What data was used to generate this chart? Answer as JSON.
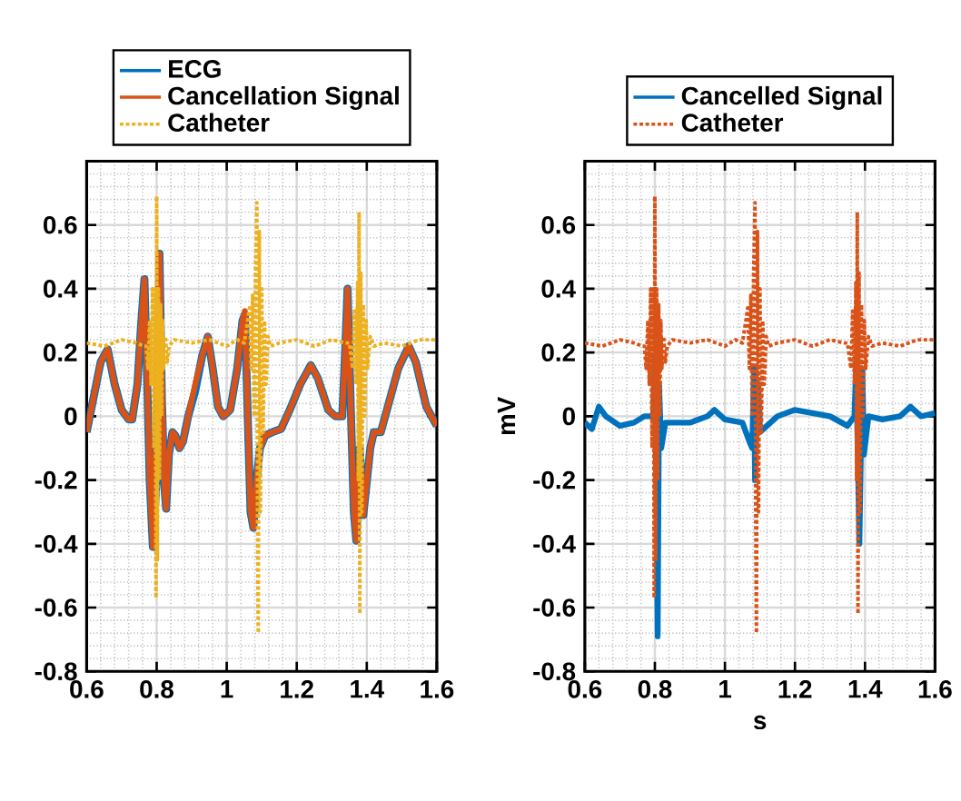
{
  "chart_data": [
    {
      "type": "line",
      "xlim": [
        0.6,
        1.6
      ],
      "ylim": [
        -0.8,
        0.8
      ],
      "xticks": [
        0.6,
        0.8,
        1,
        1.2,
        1.4,
        1.6
      ],
      "yticks": [
        -0.8,
        -0.6,
        -0.4,
        -0.2,
        0,
        0.2,
        0.4,
        0.6,
        {
          "value": 0.8,
          "label": null
        }
      ],
      "grid": true,
      "legend": "top",
      "series": [
        {
          "name": "ECG",
          "color": "#0072bd",
          "line_style": "solid",
          "x": [
            0.6,
            0.62,
            0.64,
            0.66,
            0.68,
            0.7,
            0.72,
            0.73,
            0.745,
            0.755,
            0.765,
            0.772,
            0.78,
            0.789,
            0.8,
            0.808,
            0.815,
            0.822,
            0.827,
            0.835,
            0.845,
            0.853,
            0.865,
            0.875,
            0.89,
            0.91,
            0.93,
            0.946,
            0.96,
            0.975,
            0.99,
            1.01,
            1.03,
            1.045,
            1.052,
            1.06,
            1.068,
            1.076,
            1.085,
            1.095,
            1.11,
            1.13,
            1.155,
            1.18,
            1.21,
            1.24,
            1.26,
            1.29,
            1.31,
            1.33,
            1.338,
            1.345,
            1.355,
            1.363,
            1.37,
            1.38,
            1.39,
            1.41,
            1.42,
            1.44,
            1.46,
            1.49,
            1.52,
            1.54,
            1.57,
            1.6
          ],
          "values": [
            -0.05,
            0.06,
            0.17,
            0.21,
            0.1,
            0.02,
            -0.01,
            -0.01,
            0.1,
            0.28,
            0.43,
            0.15,
            -0.2,
            -0.41,
            -0.19,
            0.51,
            0.05,
            -0.22,
            -0.29,
            -0.12,
            -0.05,
            -0.06,
            -0.1,
            -0.08,
            0.0,
            0.08,
            0.19,
            0.25,
            0.15,
            0.03,
            0.0,
            0.02,
            0.15,
            0.3,
            0.32,
            0.0,
            -0.3,
            -0.35,
            -0.2,
            -0.1,
            -0.06,
            -0.05,
            -0.04,
            0.02,
            0.1,
            0.16,
            0.12,
            0.02,
            0.0,
            0.0,
            0.2,
            0.4,
            0.0,
            -0.3,
            -0.39,
            -0.1,
            -0.31,
            -0.1,
            -0.05,
            -0.05,
            0.03,
            0.15,
            0.22,
            0.17,
            0.03,
            -0.03
          ]
        },
        {
          "name": "Cancellation Signal",
          "color": "#d95319",
          "line_style": "solid",
          "x": [
            0.6,
            0.62,
            0.64,
            0.66,
            0.68,
            0.7,
            0.72,
            0.73,
            0.745,
            0.755,
            0.765,
            0.772,
            0.78,
            0.789,
            0.8,
            0.808,
            0.815,
            0.822,
            0.827,
            0.835,
            0.845,
            0.853,
            0.865,
            0.875,
            0.89,
            0.91,
            0.93,
            0.946,
            0.96,
            0.975,
            0.99,
            1.01,
            1.03,
            1.045,
            1.052,
            1.06,
            1.068,
            1.076,
            1.085,
            1.095,
            1.11,
            1.13,
            1.155,
            1.18,
            1.21,
            1.24,
            1.26,
            1.29,
            1.31,
            1.33,
            1.338,
            1.345,
            1.355,
            1.363,
            1.37,
            1.38,
            1.39,
            1.41,
            1.42,
            1.44,
            1.46,
            1.49,
            1.52,
            1.54,
            1.57,
            1.6
          ],
          "values": [
            -0.05,
            0.06,
            0.17,
            0.21,
            0.1,
            0.02,
            -0.01,
            -0.01,
            0.1,
            0.28,
            0.43,
            0.15,
            -0.2,
            -0.41,
            0.1,
            0.51,
            0.1,
            -0.22,
            -0.29,
            -0.12,
            -0.05,
            -0.06,
            -0.1,
            -0.08,
            0.0,
            0.1,
            0.19,
            0.25,
            0.15,
            0.03,
            0.0,
            0.02,
            0.15,
            0.3,
            0.33,
            0.0,
            -0.3,
            -0.35,
            -0.2,
            -0.1,
            -0.06,
            -0.05,
            -0.04,
            0.02,
            0.1,
            0.16,
            0.12,
            0.02,
            0.0,
            0.0,
            0.2,
            0.4,
            0.0,
            -0.3,
            -0.39,
            -0.1,
            -0.31,
            -0.1,
            -0.05,
            -0.05,
            0.03,
            0.15,
            0.22,
            0.17,
            0.03,
            -0.03
          ]
        },
        {
          "name": "Catheter",
          "color": "#edb120",
          "line_style": "dotted",
          "x": [
            0.6,
            0.65,
            0.7,
            0.74,
            0.765,
            0.77,
            0.775,
            0.78,
            0.784,
            0.788,
            0.792,
            0.796,
            0.798,
            0.8,
            0.802,
            0.805,
            0.808,
            0.811,
            0.814,
            0.817,
            0.82,
            0.825,
            0.83,
            0.835,
            0.85,
            0.9,
            0.95,
            1.0,
            1.03,
            1.05,
            1.06,
            1.065,
            1.07,
            1.074,
            1.078,
            1.082,
            1.086,
            1.088,
            1.09,
            1.093,
            1.096,
            1.1,
            1.104,
            1.108,
            1.112,
            1.118,
            1.125,
            1.15,
            1.2,
            1.25,
            1.3,
            1.34,
            1.35,
            1.36,
            1.365,
            1.37,
            1.374,
            1.376,
            1.378,
            1.38,
            1.383,
            1.386,
            1.39,
            1.394,
            1.398,
            1.402,
            1.41,
            1.42,
            1.45,
            1.5,
            1.55,
            1.6
          ],
          "values": [
            0.23,
            0.22,
            0.24,
            0.23,
            0.22,
            0.22,
            0.15,
            0.3,
            0.1,
            0.4,
            -0.1,
            0.4,
            -0.57,
            0.69,
            -0.45,
            0.4,
            -0.2,
            0.35,
            0.0,
            0.3,
            0.15,
            0.25,
            0.17,
            0.22,
            0.24,
            0.23,
            0.24,
            0.22,
            0.24,
            0.23,
            0.3,
            0.34,
            0.15,
            0.38,
            0.0,
            0.45,
            0.67,
            -0.3,
            -0.68,
            0.58,
            -0.3,
            0.4,
            -0.05,
            0.3,
            0.1,
            0.25,
            0.22,
            0.23,
            0.24,
            0.22,
            0.24,
            0.23,
            0.23,
            0.15,
            0.33,
            0.1,
            0.42,
            -0.2,
            0.64,
            -0.62,
            0.45,
            -0.3,
            0.35,
            0.0,
            0.3,
            0.15,
            0.25,
            0.22,
            0.23,
            0.22,
            0.24,
            0.24
          ]
        }
      ]
    },
    {
      "type": "line",
      "xlim": [
        0.6,
        1.6
      ],
      "ylim": [
        -0.8,
        0.8
      ],
      "xticks": [
        0.6,
        0.8,
        1,
        1.2,
        1.4,
        1.6
      ],
      "yticks": [
        -0.8,
        -0.6,
        -0.4,
        -0.2,
        0,
        0.2,
        0.4,
        0.6,
        {
          "value": 0.8,
          "label": null
        }
      ],
      "grid": true,
      "legend": "top",
      "xlabel": "s",
      "ylabel": "mV",
      "series": [
        {
          "name": "Cancelled Signal",
          "color": "#0072bd",
          "line_style": "solid",
          "x": [
            0.6,
            0.62,
            0.64,
            0.66,
            0.7,
            0.74,
            0.77,
            0.795,
            0.8,
            0.805,
            0.808,
            0.812,
            0.818,
            0.83,
            0.9,
            0.95,
            0.97,
            1.0,
            1.05,
            1.07,
            1.078,
            1.083,
            1.086,
            1.09,
            1.095,
            1.1,
            1.15,
            1.2,
            1.25,
            1.3,
            1.35,
            1.37,
            1.375,
            1.384,
            1.392,
            1.397,
            1.41,
            1.45,
            1.5,
            1.53,
            1.56,
            1.6
          ],
          "values": [
            -0.02,
            -0.04,
            0.03,
            0.0,
            -0.03,
            -0.02,
            0.0,
            0.0,
            0.18,
            -0.3,
            -0.69,
            0.1,
            -0.1,
            -0.02,
            -0.02,
            0.0,
            0.02,
            -0.01,
            -0.02,
            -0.08,
            -0.1,
            0.15,
            -0.2,
            -0.05,
            0.1,
            -0.05,
            0.0,
            0.02,
            0.01,
            0.0,
            -0.03,
            0.0,
            0.17,
            -0.4,
            0.15,
            -0.12,
            0.0,
            -0.01,
            0.0,
            0.03,
            0.0,
            0.01
          ]
        },
        {
          "name": "Catheter",
          "color": "#d95319",
          "line_style": "dotted",
          "x": [
            0.6,
            0.65,
            0.7,
            0.74,
            0.765,
            0.77,
            0.775,
            0.78,
            0.784,
            0.788,
            0.792,
            0.796,
            0.798,
            0.8,
            0.802,
            0.805,
            0.808,
            0.811,
            0.814,
            0.817,
            0.82,
            0.825,
            0.83,
            0.835,
            0.85,
            0.9,
            0.95,
            1.0,
            1.03,
            1.05,
            1.06,
            1.065,
            1.07,
            1.074,
            1.078,
            1.082,
            1.086,
            1.088,
            1.09,
            1.093,
            1.096,
            1.1,
            1.104,
            1.108,
            1.112,
            1.118,
            1.125,
            1.15,
            1.2,
            1.25,
            1.3,
            1.34,
            1.35,
            1.36,
            1.365,
            1.37,
            1.374,
            1.376,
            1.378,
            1.38,
            1.383,
            1.386,
            1.39,
            1.394,
            1.398,
            1.402,
            1.41,
            1.42,
            1.45,
            1.5,
            1.55,
            1.6
          ],
          "values": [
            0.23,
            0.22,
            0.24,
            0.23,
            0.22,
            0.22,
            0.15,
            0.3,
            0.1,
            0.4,
            -0.1,
            0.4,
            -0.57,
            0.69,
            -0.45,
            0.4,
            -0.2,
            0.35,
            0.0,
            0.3,
            0.15,
            0.25,
            0.17,
            0.22,
            0.24,
            0.23,
            0.24,
            0.22,
            0.24,
            0.23,
            0.3,
            0.34,
            0.15,
            0.38,
            0.0,
            0.45,
            0.67,
            -0.3,
            -0.68,
            0.58,
            -0.3,
            0.4,
            -0.05,
            0.3,
            0.1,
            0.25,
            0.22,
            0.23,
            0.24,
            0.22,
            0.24,
            0.23,
            0.23,
            0.15,
            0.33,
            0.1,
            0.42,
            -0.2,
            0.64,
            -0.62,
            0.45,
            -0.3,
            0.35,
            0.0,
            0.3,
            0.15,
            0.25,
            0.22,
            0.23,
            0.22,
            0.24,
            0.24
          ]
        }
      ]
    }
  ]
}
